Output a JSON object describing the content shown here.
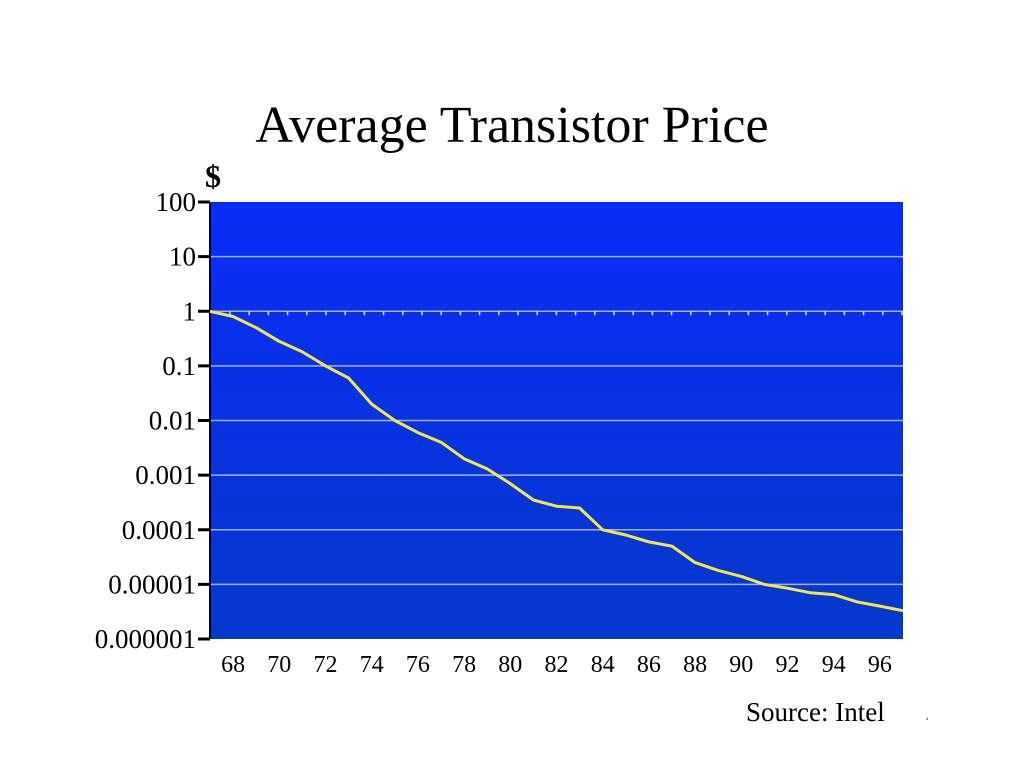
{
  "title": "Average Transistor Price",
  "unit_label": "$",
  "source": "Source: Intel",
  "page_mark": "̹",
  "colors": {
    "plot_top": "#0a2cf8",
    "plot_bottom": "#0638cc",
    "line": "#f2e84a",
    "gridline": "#9fb0ee",
    "axis": "#000000"
  },
  "chart_data": {
    "type": "line",
    "title": "Average Transistor Price",
    "ylabel": "$",
    "xlabel": "",
    "y_scale": "log",
    "ylim": [
      1e-06,
      100
    ],
    "xlim": [
      1967,
      1997
    ],
    "grid": true,
    "yticks": [
      "100",
      "10",
      "1",
      "0.1",
      "0.01",
      "0.001",
      "0.0001",
      "0.00001",
      "0.000001"
    ],
    "xticks": [
      "68",
      "70",
      "72",
      "74",
      "76",
      "78",
      "80",
      "82",
      "84",
      "86",
      "88",
      "90",
      "92",
      "94",
      "96"
    ],
    "series": [
      {
        "x": [
          1967,
          1968,
          1969,
          1970,
          1971,
          1972,
          1973,
          1974,
          1975,
          1976,
          1977,
          1978,
          1979,
          1980,
          1981,
          1982,
          1983,
          1984,
          1985,
          1986,
          1987,
          1988,
          1989,
          1990,
          1991,
          1992,
          1993,
          1994,
          1995,
          1996,
          1997
        ],
        "y": [
          1,
          0.8,
          0.5,
          0.28,
          0.18,
          0.1,
          0.06,
          0.02,
          0.01,
          0.006,
          0.004,
          0.002,
          0.0013,
          0.0007,
          0.00035,
          0.00027,
          0.00025,
          0.0001,
          8e-05,
          6e-05,
          5e-05,
          2.5e-05,
          1.8e-05,
          1.4e-05,
          1e-05,
          8.5e-06,
          7e-06,
          6.5e-06,
          4.8e-06,
          4e-06,
          3.3e-06
        ]
      }
    ]
  }
}
